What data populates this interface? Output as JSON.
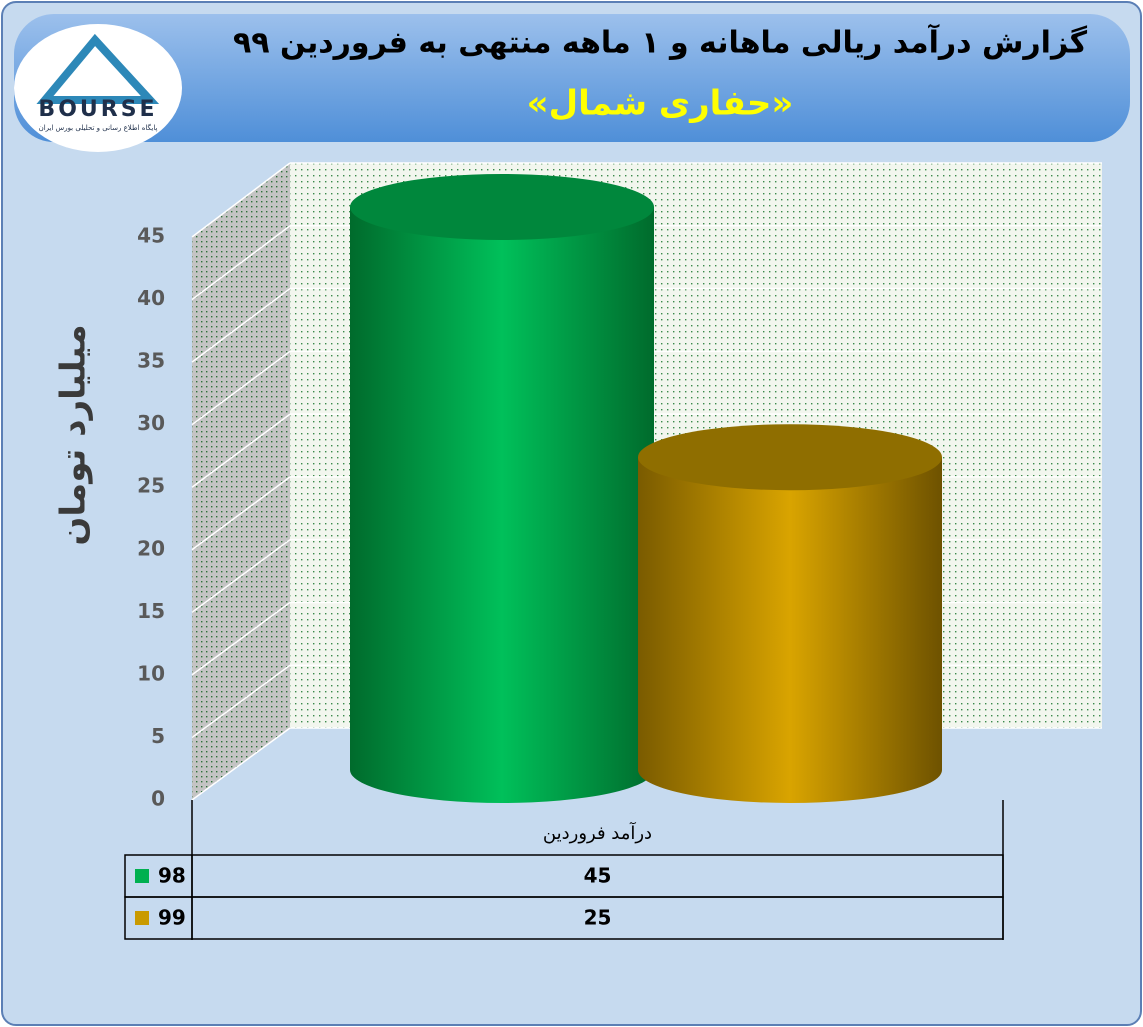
{
  "logo": {
    "text": "BOURSE",
    "tagline": "پایگاه اطلاع رسانی و تحلیلی بورس ایران"
  },
  "chart_data": {
    "type": "bar",
    "title": "گزارش درآمد ریالی ماهانه و ۱ ماهه منتهی به فروردین ۹۹",
    "subtitle": "«حفاری شمال»",
    "y_label": "میلیارد تومان",
    "categories": [
      "درآمد فروردین"
    ],
    "series": [
      {
        "name": "98",
        "color": "#00b050",
        "values": [
          45
        ]
      },
      {
        "name": "99",
        "color": "#c99a00",
        "values": [
          25
        ]
      }
    ],
    "ylim": [
      0,
      45
    ],
    "yticks": [
      0,
      5,
      10,
      15,
      20,
      25,
      30,
      35,
      40,
      45
    ],
    "grid": true,
    "data_table": true
  }
}
